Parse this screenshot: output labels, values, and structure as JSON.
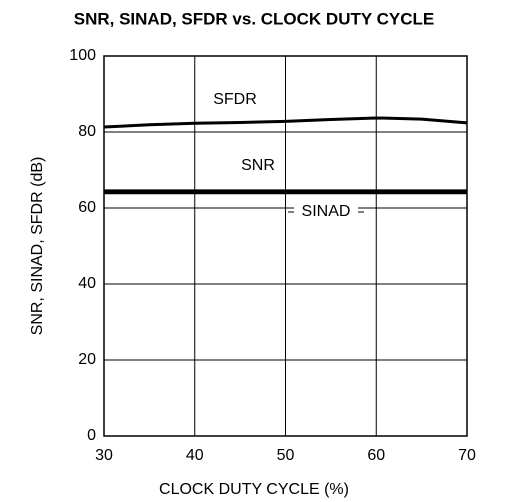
{
  "chart_data": {
    "type": "line",
    "title": "SNR, SINAD, SFDR vs. CLOCK DUTY CYCLE",
    "x_label": "CLOCK DUTY CYCLE  (%)",
    "y_label": "SNR, SINAD, SFDR (dB)",
    "x": [
      30,
      35,
      40,
      45,
      50,
      55,
      60,
      65,
      70
    ],
    "series": [
      {
        "name": "SFDR",
        "color": "#000000",
        "values": [
          81.3,
          81.9,
          82.3,
          82.5,
          82.8,
          83.3,
          83.7,
          83.4,
          82.4
        ]
      },
      {
        "name": "SNR",
        "color": "#000000",
        "values": [
          64.5,
          64.5,
          64.5,
          64.5,
          64.5,
          64.5,
          64.5,
          64.5,
          64.5
        ]
      },
      {
        "name": "SINAD",
        "color": "#000000",
        "values": [
          64.0,
          64.0,
          64.0,
          64.0,
          64.0,
          64.0,
          64.0,
          64.0,
          64.0
        ]
      }
    ],
    "xlim": [
      30,
      70
    ],
    "xticks": [
      30,
      40,
      50,
      60,
      70
    ],
    "ylim": [
      0,
      100
    ],
    "yticks": [
      0,
      20,
      40,
      60,
      80,
      100
    ],
    "grid": true
  }
}
